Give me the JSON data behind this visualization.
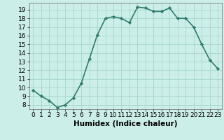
{
  "x": [
    0,
    1,
    2,
    3,
    4,
    5,
    6,
    7,
    8,
    9,
    10,
    11,
    12,
    13,
    14,
    15,
    16,
    17,
    18,
    19,
    20,
    21,
    22,
    23
  ],
  "y": [
    9.7,
    9.0,
    8.5,
    7.7,
    8.0,
    8.8,
    10.5,
    13.3,
    16.1,
    18.0,
    18.2,
    18.0,
    17.5,
    19.3,
    19.2,
    18.8,
    18.8,
    19.2,
    18.0,
    18.0,
    17.0,
    15.0,
    13.2,
    12.2
  ],
  "line_color": "#2e7d6e",
  "marker": "D",
  "marker_size": 2.2,
  "bg_color": "#cceee8",
  "grid_color": "#aad8d0",
  "xlabel": "Humidex (Indice chaleur)",
  "ylim": [
    7.5,
    19.8
  ],
  "xlim": [
    -0.5,
    23.5
  ],
  "yticks": [
    8,
    9,
    10,
    11,
    12,
    13,
    14,
    15,
    16,
    17,
    18,
    19
  ],
  "xticks": [
    0,
    1,
    2,
    3,
    4,
    5,
    6,
    7,
    8,
    9,
    10,
    11,
    12,
    13,
    14,
    15,
    16,
    17,
    18,
    19,
    20,
    21,
    22,
    23
  ],
  "xlabel_fontsize": 7.5,
  "tick_fontsize": 6.5,
  "line_width": 1.2
}
